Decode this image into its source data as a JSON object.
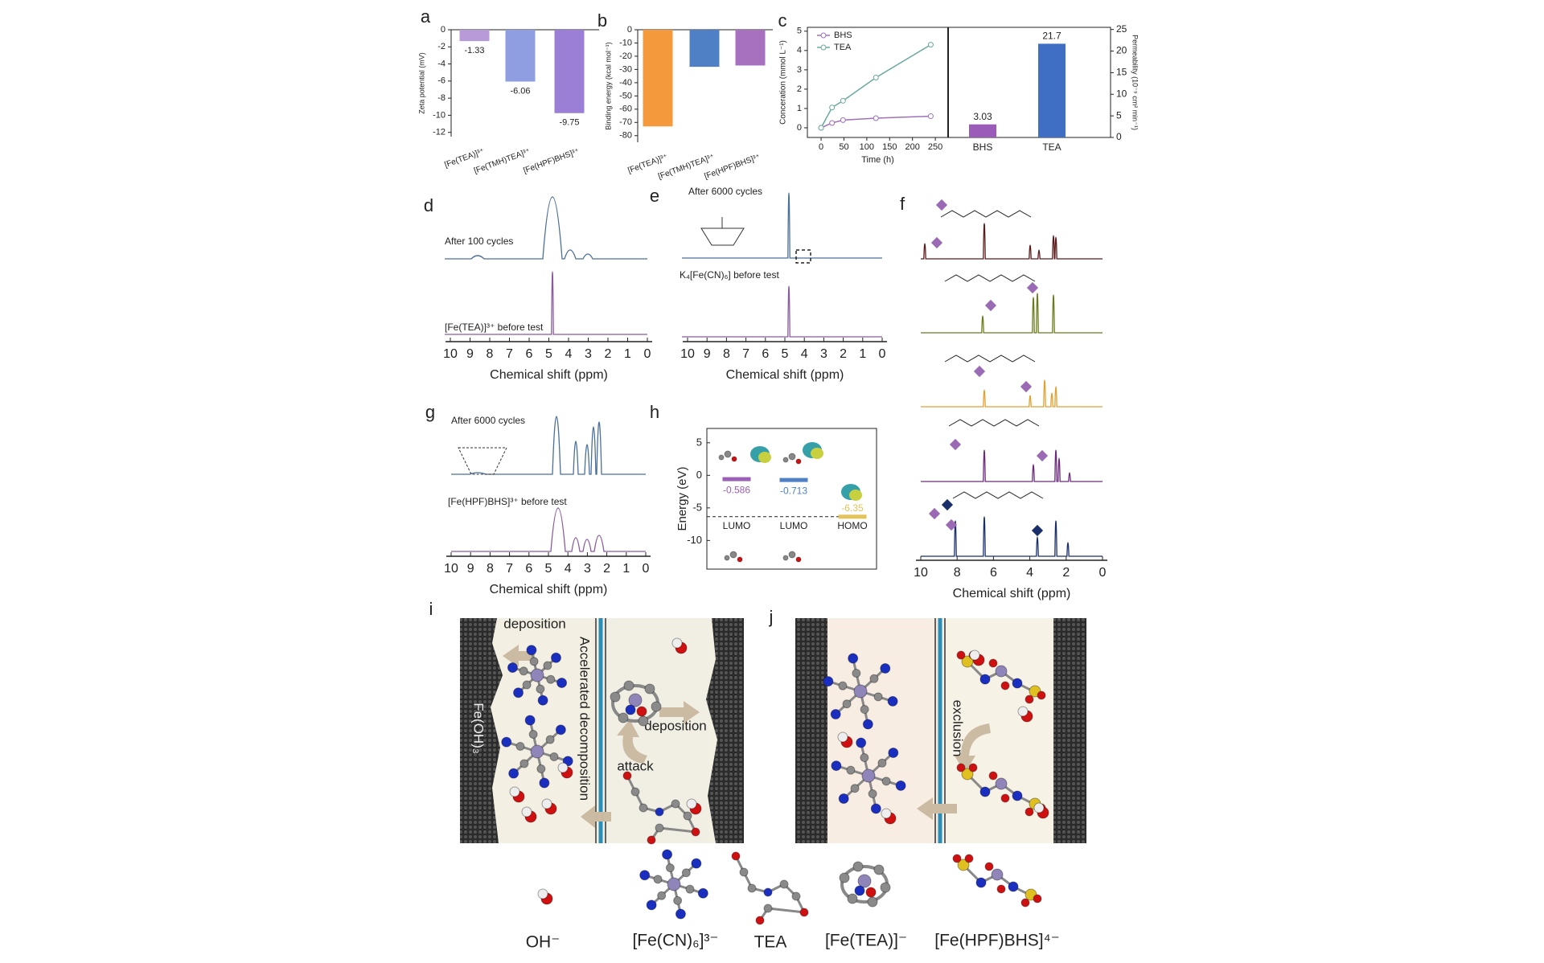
{
  "panel_labels": [
    "a",
    "b",
    "c",
    "d",
    "e",
    "f",
    "g",
    "h",
    "i",
    "j"
  ],
  "chart_data": [
    {
      "type": "bar",
      "categories": [
        "[Fe(TEA)]³⁺",
        "[Fe(TMH)TEA]³⁺",
        "[Fe(HPF)BHS]³⁺"
      ],
      "values": [
        -1.33,
        -6.06,
        -9.75
      ],
      "colors": [
        "#b89ad8",
        "#8e9ee0",
        "#9b7fd6"
      ],
      "y_label": "Zeta potential (mV)",
      "ylim": [
        -12.5,
        0
      ],
      "yticks": [
        0,
        -2,
        -4,
        -6,
        -8,
        -10,
        -12
      ],
      "data_labels": true,
      "xtick_rotation": -20
    },
    {
      "type": "bar",
      "categories": [
        "[Fe(TEA)]³⁺",
        "[Fe(TMH)TEA]³⁺",
        "[Fe(HPF)BHS]³⁺"
      ],
      "values": [
        -73,
        -28,
        -27
      ],
      "colors": [
        "#f59a3c",
        "#4f7fc4",
        "#a871c0"
      ],
      "y_label": "Binding energy (kcal mol⁻¹)",
      "ylim": [
        -85,
        0
      ],
      "yticks": [
        0,
        -10,
        -20,
        -30,
        -40,
        -50,
        -60,
        -70,
        -80
      ],
      "data_labels": false,
      "xtick_rotation": -20
    },
    {
      "type": "line",
      "x_label": "Time (h)",
      "y_label": "Conceration (mmol L⁻¹)",
      "xlim": [
        -30,
        278
      ],
      "xticks": [
        0,
        50,
        100,
        150,
        200,
        250
      ],
      "ylim": [
        -0.5,
        5.2
      ],
      "yticks": [
        0,
        1,
        2,
        3,
        4,
        5
      ],
      "legend": "upper left",
      "series": [
        {
          "name": "BHS",
          "color": "#a070b8",
          "x": [
            0,
            24,
            48,
            120,
            240
          ],
          "values": [
            0,
            0.25,
            0.4,
            0.5,
            0.6
          ]
        },
        {
          "name": "TEA",
          "color": "#6aa8a0",
          "x": [
            0,
            24,
            48,
            120,
            240
          ],
          "values": [
            0,
            1.05,
            1.4,
            2.6,
            4.3
          ]
        }
      ]
    },
    {
      "type": "bar",
      "categories": [
        "BHS",
        "TEA"
      ],
      "values": [
        3.03,
        21.7
      ],
      "colors": [
        "#9a5cb8",
        "#3f6fc4"
      ],
      "y_label": "Permeability (10⁻⁹ cm² min⁻¹)",
      "ylim": [
        0,
        25.5
      ],
      "yticks": [
        0,
        5,
        10,
        15,
        20,
        25
      ],
      "data_labels": true,
      "axis_side": "right",
      "xtick_rotation": 0
    },
    {
      "type": "nmr",
      "x_label": "Chemical shift (ppm)",
      "xlim": [
        10,
        0
      ],
      "xticks": [
        10,
        9,
        8,
        7,
        6,
        5,
        4,
        3,
        2,
        1,
        0
      ],
      "annotations": [
        "After 100 cycles",
        "[Fe(TEA)]³⁺ before test"
      ]
    },
    {
      "type": "nmr",
      "x_label": "Chemical shift (ppm)",
      "xlim": [
        10,
        0
      ],
      "xticks": [
        10,
        9,
        8,
        7,
        6,
        5,
        4,
        3,
        2,
        1,
        0
      ],
      "annotations": [
        "After 6000 cycles",
        "K₄[Fe(CN)₆] before test"
      ]
    },
    {
      "type": "nmr",
      "x_label": "Chemical shift (ppm)",
      "xlim": [
        10,
        0
      ],
      "xticks": [
        10,
        9,
        8,
        7,
        6,
        5,
        4,
        3,
        2,
        1,
        0
      ],
      "annotations": [
        "After 6000 cycles",
        "[Fe(HPF)BHS]³⁺ before test"
      ]
    },
    {
      "type": "nmr",
      "x_label": "Chemical shift (ppm)",
      "xlim": [
        10,
        0
      ],
      "xticks": [
        10,
        8,
        6,
        4,
        2,
        0
      ],
      "annotations": []
    },
    {
      "type": "energy",
      "y_label": "Energy (eV)",
      "ylim": [
        -14.4,
        7.2
      ],
      "yticks": [
        5,
        0,
        -5,
        -10
      ],
      "categories": [
        "LUMO",
        "LUMO",
        "HOMO"
      ],
      "values": [
        -0.586,
        -0.713,
        -6.35
      ],
      "colors": [
        "#9b5fb5",
        "#4f7fc4",
        "#e3c35a"
      ]
    }
  ],
  "schematic": {
    "i": [
      "deposition",
      "Accelerated decomposition",
      "Fe(OH)₃",
      "deposition",
      "attack"
    ],
    "j": [
      "exclusion"
    ]
  },
  "species_legend": [
    "OH⁻",
    "[Fe(CN)₆]³⁻",
    "TEA",
    "[Fe(TEA)]⁻",
    "[Fe(HPF)BHS]⁴⁻"
  ]
}
